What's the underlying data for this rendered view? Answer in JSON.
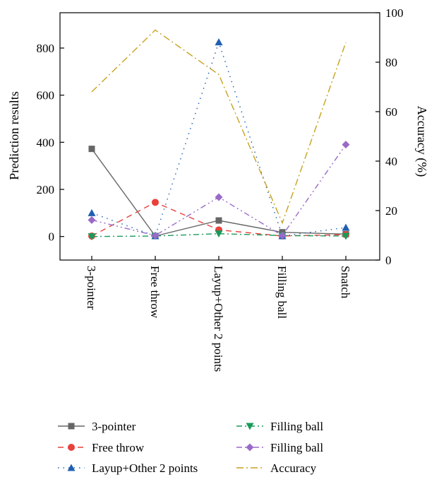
{
  "chart_data": {
    "type": "line",
    "categories": [
      "3-pointer",
      "Free throw",
      "Layup+Other 2 points",
      "Filling ball",
      "Snatch"
    ],
    "ylabel": "Prediction results",
    "y2label": "Accuracy (%)",
    "ylim": [
      -100,
      950
    ],
    "yticks": [
      0,
      200,
      400,
      600,
      800
    ],
    "y2lim": [
      0,
      100
    ],
    "y2ticks": [
      0,
      20,
      40,
      60,
      80,
      100
    ],
    "grid": false,
    "legend_position": "bottom",
    "series": [
      {
        "name": "3-pointer",
        "axis": "left",
        "color": "#666666",
        "dash": "",
        "marker": "square",
        "values": [
          372,
          2,
          68,
          18,
          10
        ]
      },
      {
        "name": "Free throw",
        "axis": "left",
        "color": "#e8413c",
        "dash": "8,6",
        "marker": "circle",
        "values": [
          2,
          145,
          28,
          2,
          8
        ]
      },
      {
        "name": "Layup+Other 2 points",
        "axis": "left",
        "color": "#1f5fb0",
        "dash": "1.5,6",
        "marker": "triangle-up",
        "values": [
          100,
          2,
          825,
          2,
          38
        ]
      },
      {
        "name": "Filling ball",
        "axis": "left",
        "color": "#1a9a5a",
        "dash": "8,4,2,4",
        "marker": "triangle-down",
        "values": [
          0,
          2,
          12,
          4,
          2
        ]
      },
      {
        "name": "Filling ball",
        "axis": "left",
        "color": "#9a6ac8",
        "dash": "8,4,2,4,2,4",
        "marker": "diamond",
        "values": [
          70,
          4,
          167,
          4,
          390
        ]
      },
      {
        "name": "Accuracy",
        "axis": "right",
        "color": "#c8a21e",
        "dash": "10,4,2,4",
        "marker": "none",
        "values": [
          68,
          93,
          75,
          15,
          88
        ]
      }
    ]
  }
}
